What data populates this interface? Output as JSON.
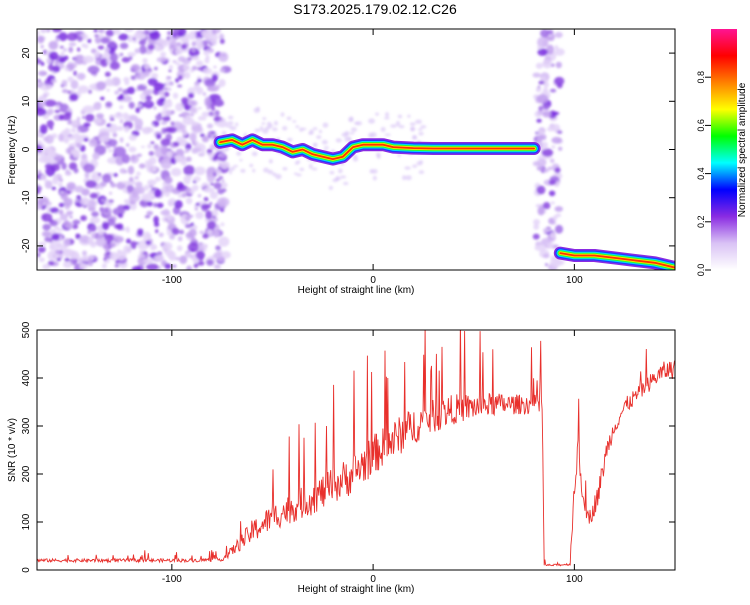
{
  "figure_title": "S173.2025.179.02.12.C26",
  "chart_data": [
    {
      "type": "heatmap",
      "title": "",
      "xlabel": "Height of straight line (km)",
      "ylabel": "Frequency (Hz)",
      "xlim": [
        -167,
        150
      ],
      "ylim": [
        -25,
        25
      ],
      "xticks": [
        -100,
        0,
        100
      ],
      "yticks": [
        -20,
        -10,
        0,
        10,
        20
      ],
      "colorbar": {
        "label": "Normalized spectral amplitude",
        "range": [
          0,
          1
        ],
        "ticks": [
          "0.0",
          "0.2",
          "0.4",
          "0.6",
          "0.8"
        ],
        "tick_values": [
          0.0,
          0.2,
          0.4,
          0.6,
          0.8
        ],
        "colors": [
          "#ffffff",
          "#d9c2f5",
          "#8a2be2",
          "#0000ff",
          "#00ffff",
          "#00ff00",
          "#ffff00",
          "#ff8000",
          "#ff0000",
          "#ff1493"
        ]
      },
      "noise_regions": [
        {
          "x": [
            -167,
            -73
          ],
          "density": "high"
        },
        {
          "x": [
            81,
            93
          ],
          "density": "high"
        }
      ],
      "ridge": {
        "x": [
          -76,
          -70,
          -65,
          -60,
          -55,
          -50,
          -45,
          -40,
          -35,
          -30,
          -25,
          -20,
          -15,
          -10,
          -5,
          0,
          5,
          10,
          20,
          30,
          40,
          50,
          60,
          70,
          80
        ],
        "y": [
          1.5,
          2,
          1,
          2,
          1,
          1,
          0.5,
          -0.5,
          0,
          -1,
          -1.5,
          -2,
          -1.5,
          0.5,
          1,
          1,
          1,
          0.5,
          0.3,
          0.2,
          0.2,
          0.2,
          0.2,
          0.2,
          0.2
        ]
      },
      "ridge_low": {
        "x": [
          93,
          100,
          110,
          120,
          130,
          140,
          150
        ],
        "y": [
          -21.5,
          -22,
          -22,
          -22.5,
          -23,
          -23.5,
          -24.5
        ]
      }
    },
    {
      "type": "line",
      "title": "",
      "xlabel": "Height of straight line (km)",
      "ylabel": "SNR (10 * v/v)",
      "xlim": [
        -167,
        150
      ],
      "ylim": [
        0,
        500
      ],
      "xticks": [
        -100,
        0,
        100
      ],
      "yticks": [
        0,
        100,
        200,
        300,
        400,
        500
      ],
      "color": "#e8302c",
      "series": [
        {
          "x": [
            -167,
            -150,
            -130,
            -110,
            -90,
            -75,
            -70,
            -60,
            -50,
            -40,
            -30,
            -20,
            -10,
            0,
            10,
            20,
            30,
            40,
            50,
            60,
            70,
            80,
            84,
            85,
            90,
            98,
            100,
            102,
            105,
            108,
            112,
            116,
            120,
            125,
            130,
            135,
            140,
            145,
            150
          ],
          "y": [
            20,
            20,
            20,
            20,
            20,
            22,
            40,
            80,
            110,
            130,
            150,
            175,
            200,
            240,
            270,
            300,
            320,
            335,
            340,
            345,
            345,
            345,
            340,
            10,
            10,
            12,
            180,
            250,
            120,
            110,
            160,
            250,
            300,
            340,
            360,
            380,
            400,
            415,
            420
          ],
          "noise": [
            5,
            5,
            5,
            5,
            5,
            5,
            15,
            35,
            40,
            45,
            50,
            55,
            60,
            60,
            60,
            55,
            50,
            45,
            40,
            35,
            30,
            30,
            30,
            3,
            3,
            3,
            40,
            40,
            20,
            25,
            35,
            30,
            25,
            25,
            25,
            25,
            25,
            30,
            30
          ]
        }
      ]
    }
  ]
}
